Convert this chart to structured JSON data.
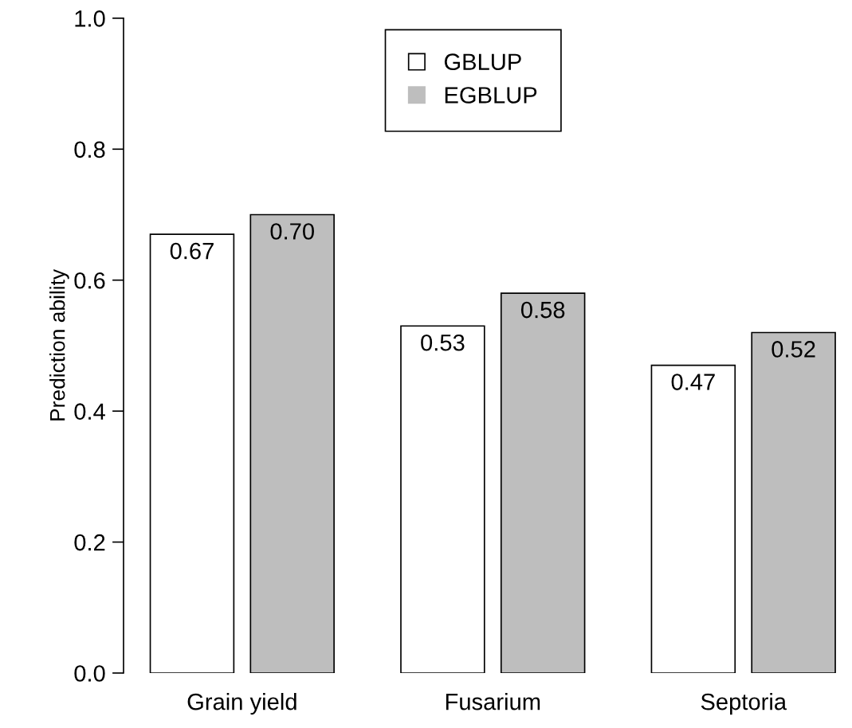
{
  "chart_data": {
    "type": "bar",
    "ylabel": "Prediction ability",
    "categories": [
      "Grain yield",
      "Fusarium",
      "Septoria"
    ],
    "series": [
      {
        "name": "GBLUP",
        "color": "#ffffff",
        "values": [
          0.67,
          0.53,
          0.47
        ],
        "value_labels": [
          "0.67",
          "0.53",
          "0.47"
        ]
      },
      {
        "name": "EGBLUP",
        "color": "#bebebe",
        "values": [
          0.7,
          0.58,
          0.52
        ],
        "value_labels": [
          "0.70",
          "0.58",
          "0.52"
        ]
      }
    ],
    "ylim": [
      0,
      1
    ],
    "yticks": [
      {
        "value": 0,
        "label": "0.0"
      },
      0.2,
      0.4,
      0.6,
      0.8,
      {
        "value": 1,
        "label": "1.0"
      }
    ],
    "legend": "top",
    "grid": false
  }
}
